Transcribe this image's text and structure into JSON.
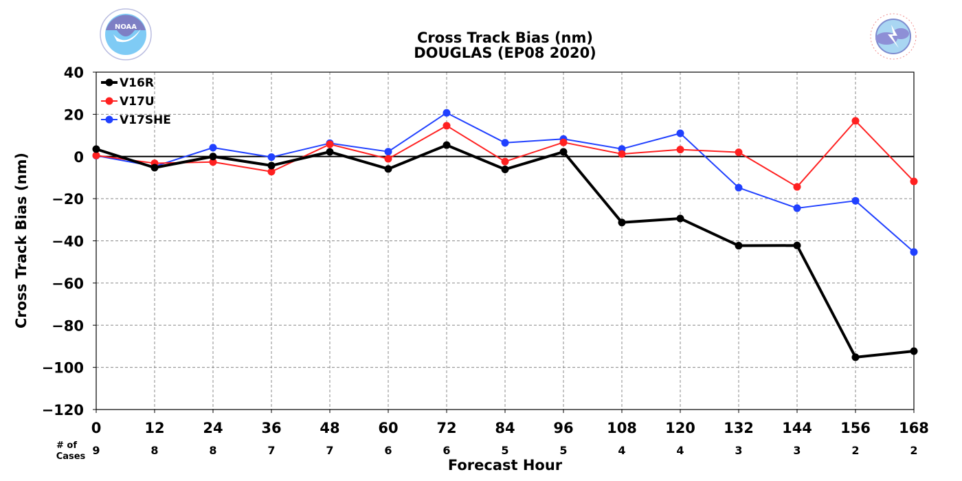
{
  "logos": {
    "noaa": {
      "text": "NOAA",
      "ring_text": "NATIONAL OCEANIC AND ATMOSPHERIC ADMINISTRATION · U.S. DEPARTMENT OF COMMERCE"
    },
    "nws": {
      "ring_text": "NATIONAL WEATHER SERVICE"
    }
  },
  "cases": {
    "label_line1": "# of",
    "label_line2": "Cases",
    "counts": [
      "9",
      "8",
      "8",
      "7",
      "7",
      "6",
      "6",
      "5",
      "5",
      "4",
      "4",
      "3",
      "3",
      "2",
      "2"
    ]
  },
  "colors": {
    "V16R": "#000000",
    "V17U": "#ff2020",
    "V17SHE": "#2040ff",
    "grid": "#888888"
  },
  "chart_data": {
    "type": "line",
    "title": "Cross Track Bias (nm)",
    "subtitle": "DOUGLAS (EP08 2020)",
    "xlabel": "Forecast Hour",
    "ylabel": "Cross Track Bias (nm)",
    "x": [
      0,
      12,
      24,
      36,
      48,
      60,
      72,
      84,
      96,
      108,
      120,
      132,
      144,
      156,
      168
    ],
    "x_tick_labels": [
      "0",
      "12",
      "24",
      "36",
      "48",
      "60",
      "72",
      "84",
      "96",
      "108",
      "120",
      "132",
      "144",
      "156",
      "168"
    ],
    "xlim": [
      0,
      168
    ],
    "ylim": [
      -120,
      40
    ],
    "y_ticks": [
      40,
      20,
      0,
      -20,
      -40,
      -60,
      -80,
      -100,
      -120
    ],
    "y_tick_labels": [
      "40",
      "20",
      "0",
      "−20",
      "−40",
      "−60",
      "−80",
      "−100",
      "−120"
    ],
    "grid": true,
    "legend_position": "top-left",
    "series": [
      {
        "name": "V16R",
        "values": [
          3.5,
          -5.3,
          0,
          -4.3,
          2.2,
          -5.9,
          5.4,
          -6.1,
          2.2,
          -31.3,
          -29.4,
          -42.3,
          -42.2,
          -95.2,
          -92.3
        ]
      },
      {
        "name": "V17U",
        "values": [
          0.5,
          -3.2,
          -2.6,
          -7.2,
          5.8,
          -1.1,
          14.6,
          -2.4,
          6.7,
          1.2,
          3.3,
          2.0,
          -14.4,
          16.9,
          -11.8
        ]
      },
      {
        "name": "V17SHE",
        "values": [
          0.4,
          -4.7,
          4.2,
          -0.3,
          6.3,
          2.3,
          20.7,
          6.5,
          8.3,
          3.6,
          11.0,
          -14.8,
          -24.5,
          -21.0,
          -45.3
        ]
      }
    ]
  }
}
